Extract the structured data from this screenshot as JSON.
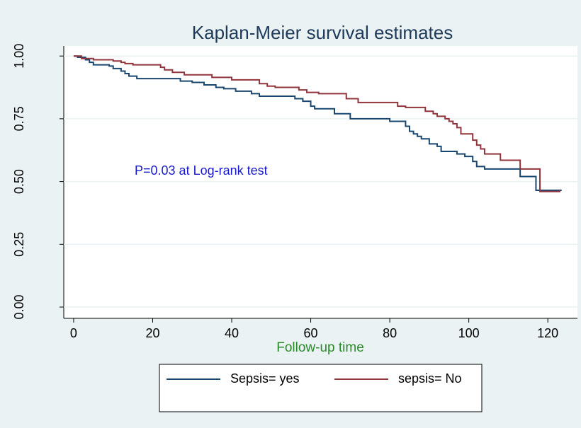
{
  "chart_data": {
    "type": "line",
    "step": "post",
    "title": "Kaplan-Meier survival estimates",
    "x_label": "Follow-up  time",
    "annotation": "P=0.03 at Log-rank test",
    "xlim": [
      -2.5,
      127.5
    ],
    "ylim": [
      -0.045,
      1.04
    ],
    "xticks": [
      0,
      20,
      40,
      60,
      80,
      100,
      120
    ],
    "yticks": [
      {
        "value": 0,
        "label": "0.00"
      },
      0.25,
      {
        "value": 0.5,
        "label": "0.50"
      },
      0.75,
      {
        "value": 1,
        "label": "1.00"
      }
    ],
    "grid": true,
    "legend": "bottom",
    "series": [
      {
        "name": "Sepsis= yes",
        "color": "#1a476f",
        "x": [
          0,
          1,
          3,
          4,
          5,
          9,
          10,
          12,
          13,
          14,
          16,
          27,
          30,
          33,
          36,
          38,
          41,
          45,
          47,
          56,
          58,
          60,
          61,
          66,
          70,
          80,
          84,
          85,
          86,
          87,
          88,
          90,
          92,
          93,
          97,
          99,
          101,
          102,
          104,
          113,
          117,
          123.5
        ],
        "values": [
          1.0,
          0.995,
          0.985,
          0.975,
          0.965,
          0.96,
          0.95,
          0.94,
          0.93,
          0.92,
          0.91,
          0.9,
          0.895,
          0.885,
          0.875,
          0.87,
          0.86,
          0.85,
          0.84,
          0.83,
          0.82,
          0.8,
          0.79,
          0.77,
          0.75,
          0.74,
          0.72,
          0.7,
          0.69,
          0.68,
          0.67,
          0.65,
          0.64,
          0.62,
          0.61,
          0.6,
          0.58,
          0.56,
          0.55,
          0.52,
          0.465,
          0.465
        ]
      },
      {
        "name": "sepsis= No",
        "color": "#90353b",
        "x": [
          0,
          2,
          5,
          10,
          12,
          13,
          15,
          22,
          23,
          25,
          28,
          35,
          40,
          47,
          49,
          51,
          57,
          59,
          62,
          69,
          72,
          82,
          84,
          89,
          91,
          92,
          94,
          95,
          96,
          97,
          98,
          101,
          102,
          103,
          104,
          108,
          113,
          118,
          122,
          123
        ],
        "values": [
          1.0,
          0.99,
          0.985,
          0.98,
          0.975,
          0.97,
          0.965,
          0.955,
          0.945,
          0.935,
          0.925,
          0.915,
          0.905,
          0.89,
          0.88,
          0.875,
          0.865,
          0.855,
          0.85,
          0.83,
          0.815,
          0.8,
          0.795,
          0.78,
          0.77,
          0.76,
          0.75,
          0.74,
          0.73,
          0.715,
          0.69,
          0.665,
          0.645,
          0.63,
          0.61,
          0.585,
          0.55,
          0.46,
          0.46,
          0.465
        ]
      }
    ]
  }
}
